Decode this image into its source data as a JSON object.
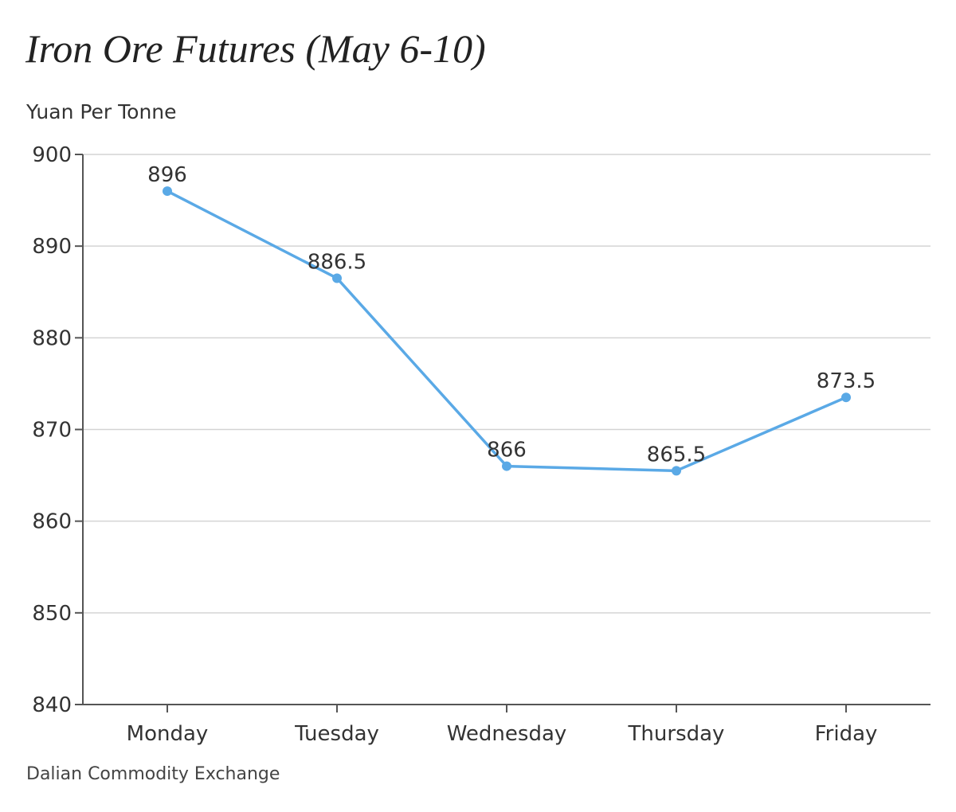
{
  "chart_data": {
    "type": "line",
    "title": "Iron Ore Futures (May 6-10)",
    "ylabel": "Yuan Per Tonne",
    "xlabel": "",
    "source": "Dalian Commodity Exchange",
    "categories": [
      "Monday",
      "Tuesday",
      "Wednesday",
      "Thursday",
      "Friday"
    ],
    "series": [
      {
        "values": [
          896,
          886.5,
          866,
          865.5,
          873.5
        ],
        "data_labels": [
          "896",
          "886.5",
          "866",
          "865.5",
          "873.5"
        ]
      }
    ],
    "ylim": [
      840,
      900
    ],
    "yticks": [
      840,
      850,
      860,
      870,
      880,
      890,
      900
    ],
    "grid": true,
    "line_color": "#5aa9e6"
  }
}
